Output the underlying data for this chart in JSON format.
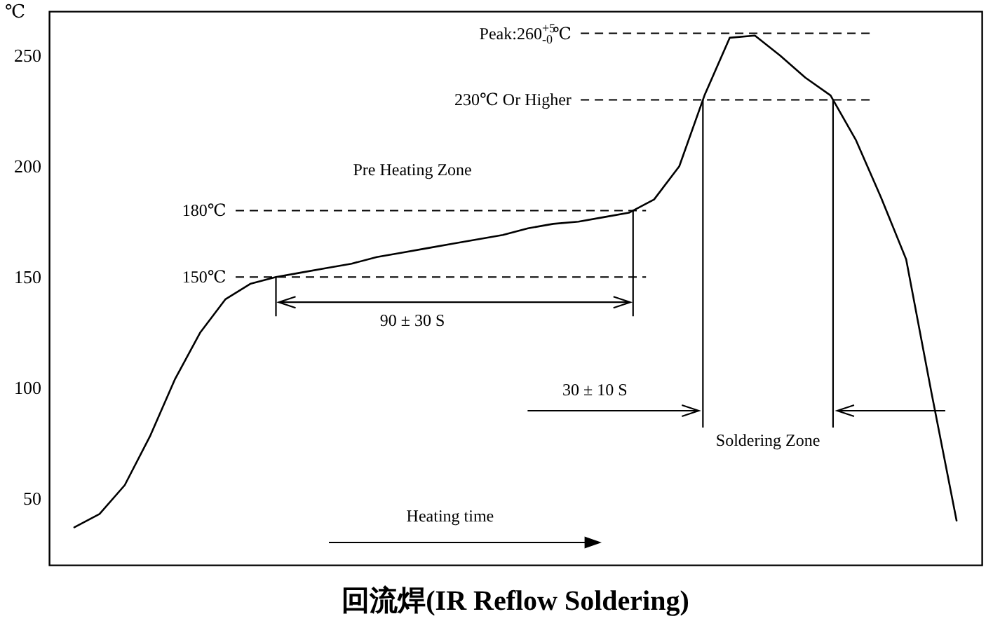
{
  "chart_data": {
    "type": "line",
    "title": "回流焊(IR Reflow Soldering)",
    "xlabel": "Heating time",
    "ylabel": "℃",
    "categories": [
      null,
      null,
      null,
      null,
      null,
      null,
      null,
      null,
      null,
      null,
      null,
      null,
      null,
      null,
      null,
      null,
      null,
      null,
      null,
      null,
      null,
      null,
      null,
      null,
      null,
      null,
      null,
      null,
      null,
      null,
      null,
      null,
      null,
      null,
      null,
      null
    ],
    "series": [
      {
        "color": "#000000",
        "values": [
          37,
          43,
          56,
          78,
          104,
          125,
          140,
          147,
          150,
          152,
          154,
          156,
          159,
          161,
          163,
          165,
          167,
          169,
          172,
          174,
          175,
          177,
          179,
          185,
          200,
          232,
          258,
          259,
          250,
          240,
          232,
          212,
          186,
          158,
          98,
          40
        ]
      }
    ],
    "ylim": [
      20,
      270
    ],
    "yticks": [
      50,
      100,
      150,
      200,
      250
    ],
    "tick_labels": "y",
    "line_style": "solid",
    "marker": "none",
    "ref_lines": [
      {
        "axis": "y",
        "value": 260,
        "label": "Peak:260$^{+5}$$_{-0}$℃",
        "line_style": "dashed"
      },
      {
        "axis": "y",
        "value": 230,
        "label": "230℃ Or Higher",
        "line_style": "dashed"
      },
      {
        "axis": "y",
        "value": 180,
        "label": "180℃",
        "line_style": "dashed"
      },
      {
        "axis": "y",
        "value": 150,
        "label": "150℃",
        "line_style": "dashed"
      }
    ],
    "annotations": [
      "Pre Heating Zone",
      "90 ± 30 S",
      "30 ± 10 S",
      "Soldering Zone"
    ]
  }
}
